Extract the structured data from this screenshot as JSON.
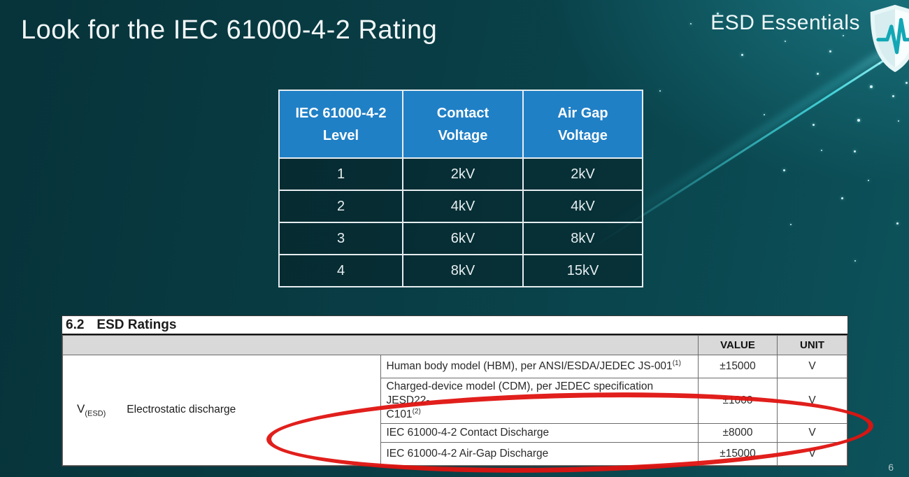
{
  "slide": {
    "title": "Look for the IEC 61000-4-2 Rating",
    "brand": "ESD Essentials",
    "page_number": "6"
  },
  "colors": {
    "background_dark": "#07333a",
    "background_light": "#0d525b",
    "header_blue": "#2080c6",
    "accent_cyan": "#49e4ea",
    "annotation_red": "#df1310"
  },
  "icons": {
    "brand_logo": "shield-pulse-icon"
  },
  "iec_table": {
    "headers": [
      "IEC 61000-4-2 Level",
      "Contact Voltage",
      "Air Gap Voltage"
    ],
    "rows": [
      [
        "1",
        "2kV",
        "2kV"
      ],
      [
        "2",
        "4kV",
        "4kV"
      ],
      [
        "3",
        "6kV",
        "8kV"
      ],
      [
        "4",
        "8kV",
        "15kV"
      ]
    ]
  },
  "datasheet": {
    "section_number": "6.2",
    "section_title": "ESD Ratings",
    "col_value": "VALUE",
    "col_unit": "UNIT",
    "param_symbol": "V",
    "param_symbol_sub": "(ESD)",
    "param_name": "Electrostatic discharge",
    "rows": [
      {
        "desc": "Human body model (HBM), per ANSI/ESDA/JEDEC JS-001",
        "desc_sup": "(1)",
        "desc2": "",
        "desc2_sup": "",
        "value": "±15000",
        "unit": "V"
      },
      {
        "desc": "Charged-device model (CDM), per JEDEC specification JESD22-",
        "desc_sup": "",
        "desc2": "C101",
        "desc2_sup": "(2)",
        "value": "±1000",
        "unit": "V"
      },
      {
        "desc": "IEC 61000-4-2 Contact Discharge",
        "desc_sup": "",
        "desc2": "",
        "desc2_sup": "",
        "value": "±8000",
        "unit": "V"
      },
      {
        "desc": "IEC 61000-4-2 Air-Gap Discharge",
        "desc_sup": "",
        "desc2": "",
        "desc2_sup": "",
        "value": "±15000",
        "unit": "V"
      }
    ]
  }
}
